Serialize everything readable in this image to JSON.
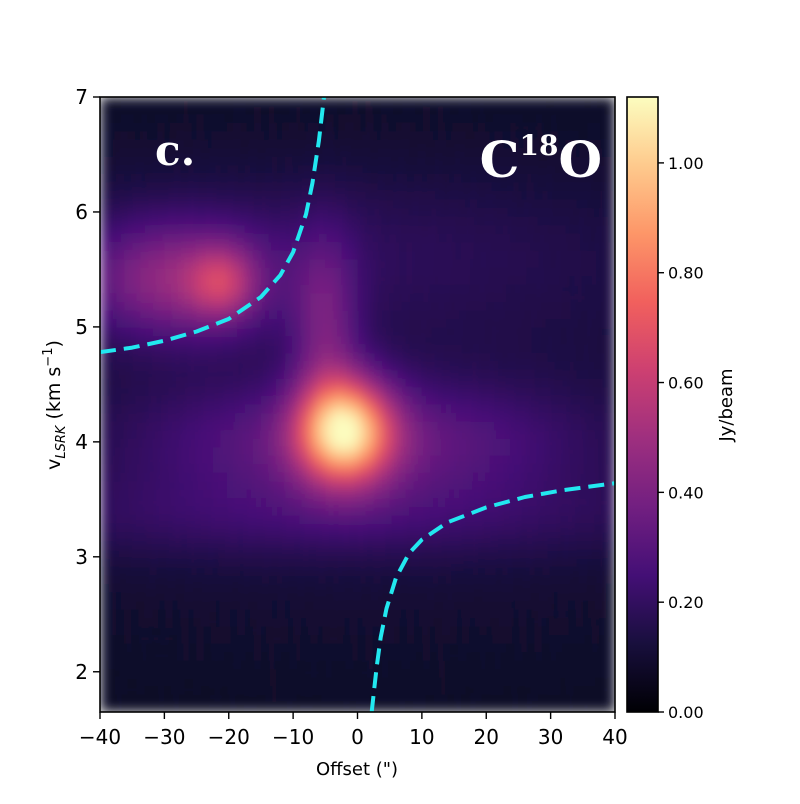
{
  "chart_data": {
    "type": "heatmap",
    "title": "",
    "panel_label": "c.",
    "species": {
      "base": "C",
      "superscript": "18",
      "suffix": "O"
    },
    "xlabel": "Offset (\")",
    "ylabel": {
      "main": "v",
      "subscript": "LSRK",
      "unit_prefix": " (km s",
      "unit_exp": "−1",
      "unit_suffix": ")"
    },
    "xlim": [
      -40,
      40
    ],
    "ylim": [
      1.65,
      7.0
    ],
    "xticks": [
      -40,
      -30,
      -20,
      -10,
      0,
      10,
      20,
      30,
      40
    ],
    "xtick_labels": [
      "−40",
      "−30",
      "−20",
      "−10",
      "0",
      "10",
      "20",
      "30",
      "40"
    ],
    "yticks": [
      2,
      3,
      4,
      5,
      6,
      7
    ],
    "ytick_labels": [
      "2",
      "3",
      "4",
      "5",
      "6",
      "7"
    ],
    "colorbar": {
      "label": "Jy/beam",
      "range": [
        0.0,
        1.12
      ],
      "ticks": [
        0.0,
        0.2,
        0.4,
        0.6,
        0.8,
        1.0
      ],
      "tick_labels": [
        "0.00",
        "0.20",
        "0.40",
        "0.60",
        "0.80",
        "1.00"
      ],
      "colormap": "magma",
      "stops": [
        "#000004",
        "#180f3d",
        "#440f76",
        "#721f81",
        "#9e2f7f",
        "#cd4071",
        "#f1605d",
        "#fd9668",
        "#feca8d",
        "#fcfdbf"
      ]
    },
    "emission_components": [
      {
        "name": "central-peak",
        "x": -2,
        "v": 4.1,
        "sx": 5,
        "sv": 0.32,
        "amp": 0.78
      },
      {
        "name": "horizontal-band",
        "x": 0,
        "v": 4.0,
        "sx": 22,
        "sv": 0.35,
        "amp": 0.22
      },
      {
        "name": "left-lobe",
        "x": -28,
        "v": 5.4,
        "sx": 10,
        "sv": 0.35,
        "amp": 0.3
      },
      {
        "name": "left-knot",
        "x": -21,
        "v": 5.38,
        "sx": 3.5,
        "sv": 0.22,
        "amp": 0.26
      },
      {
        "name": "upper-ridge",
        "x": -5,
        "v": 5.0,
        "sx": 3.5,
        "sv": 0.55,
        "amp": 0.22
      },
      {
        "name": "lower-band",
        "x": -5,
        "v": 3.35,
        "sx": 40,
        "sv": 0.28,
        "amp": 0.1
      },
      {
        "name": "upper-band",
        "x": -10,
        "v": 5.7,
        "sx": 40,
        "sv": 0.5,
        "amp": 0.07
      },
      {
        "name": "diffuse",
        "x": 0,
        "v": 4.4,
        "sx": 60,
        "sv": 1.6,
        "amp": 0.08
      }
    ],
    "background_level": 0.06,
    "curves": [
      {
        "name": "keplerian-upper-left",
        "color": "#22e8f0",
        "style": "dashed",
        "x": [
          -40,
          -35,
          -30,
          -25,
          -20,
          -15,
          -12,
          -10,
          -8,
          -7,
          -6,
          -5.2
        ],
        "v": [
          4.78,
          4.82,
          4.88,
          4.96,
          5.07,
          5.26,
          5.45,
          5.65,
          5.98,
          6.25,
          6.62,
          7.0
        ]
      },
      {
        "name": "keplerian-lower-right",
        "color": "#22e8f0",
        "style": "dashed",
        "x": [
          2.2,
          2.6,
          3.0,
          3.6,
          4.5,
          6,
          8,
          10,
          14,
          20,
          26,
          32,
          40
        ],
        "v": [
          1.65,
          1.85,
          2.05,
          2.3,
          2.55,
          2.82,
          3.03,
          3.15,
          3.3,
          3.43,
          3.52,
          3.58,
          3.64
        ]
      }
    ]
  }
}
